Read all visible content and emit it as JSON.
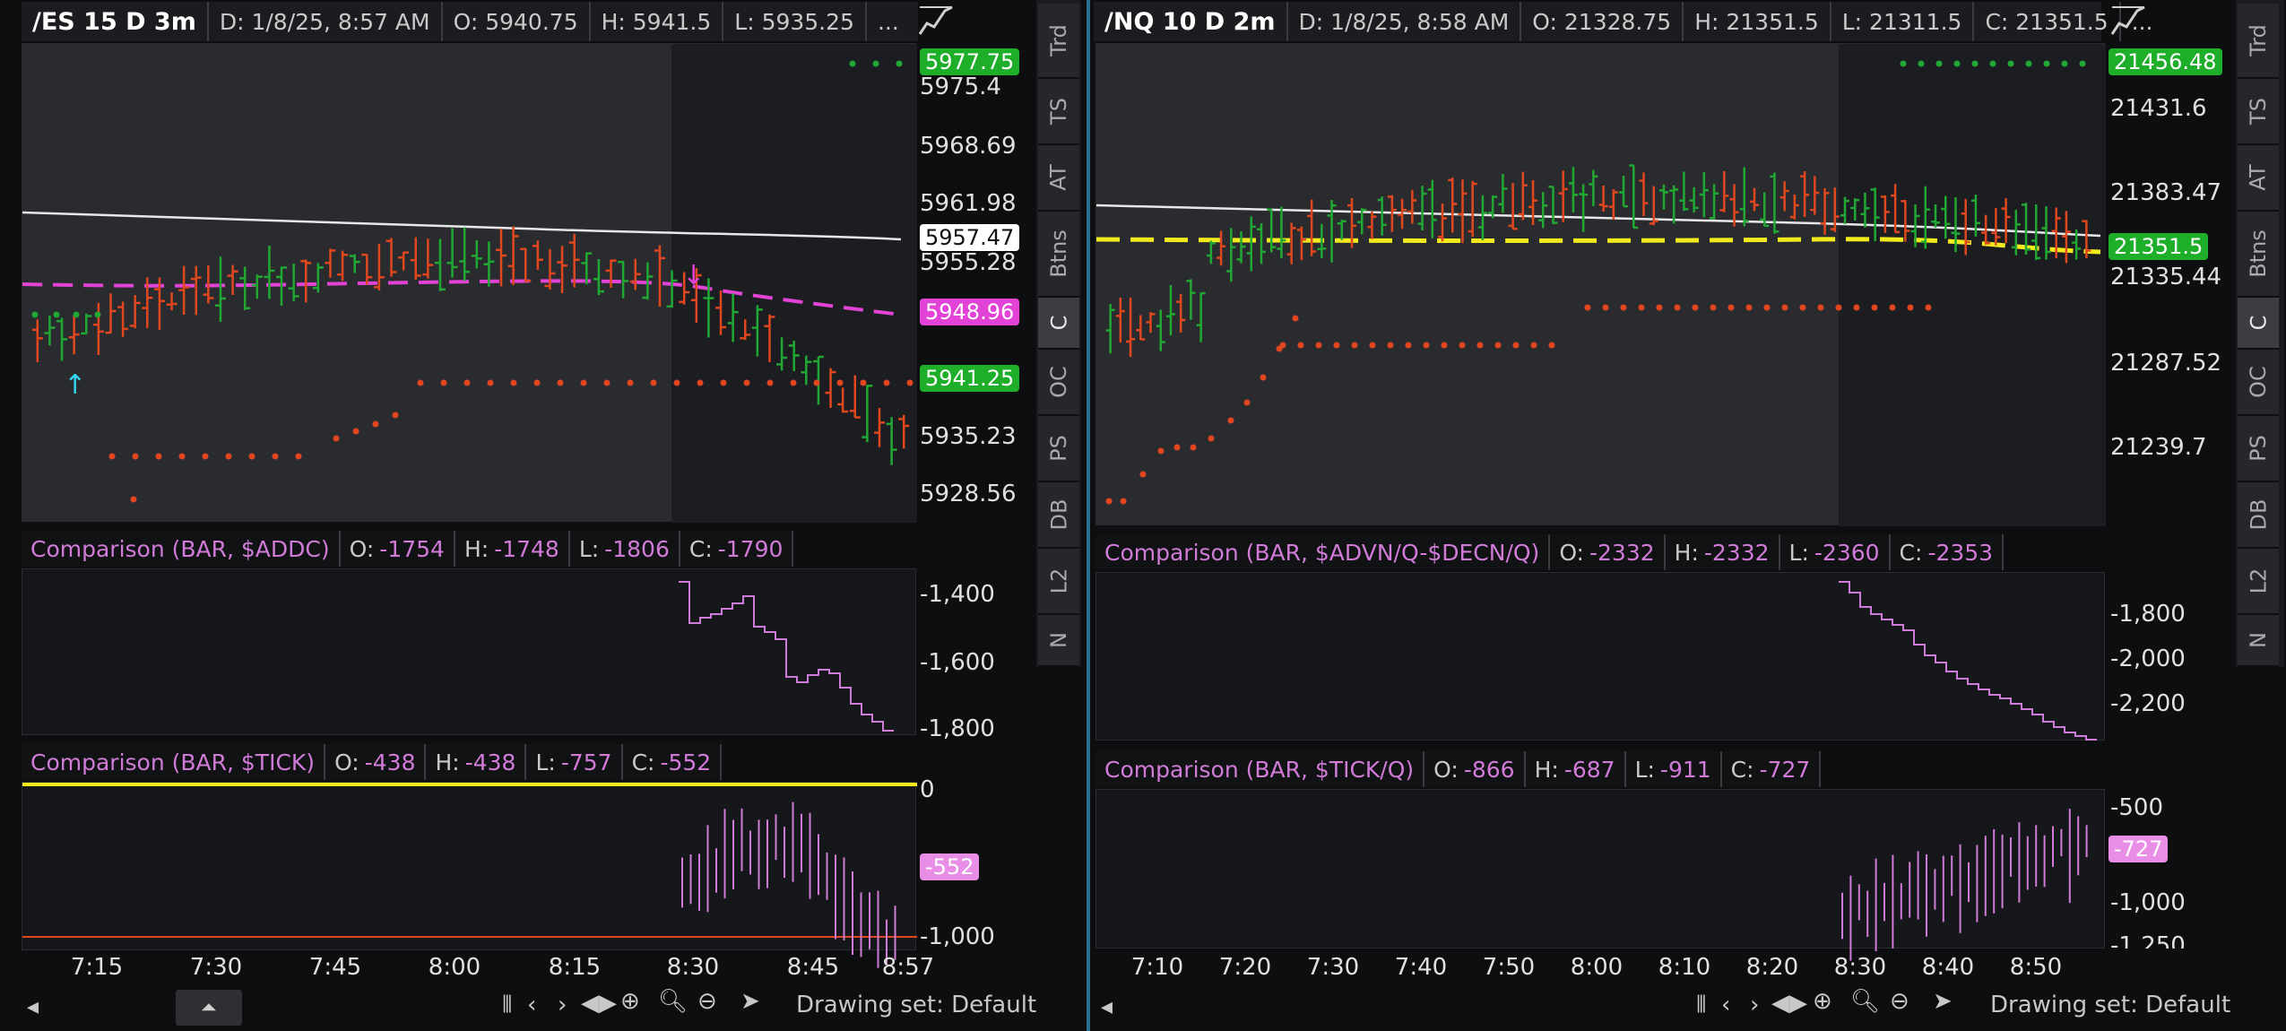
{
  "left": {
    "header": {
      "symbol": "/ES 15 D 3m",
      "date": "D: 1/8/25, 8:57 AM",
      "open": "O: 5940.75",
      "high": "H: 5941.5",
      "low": "L: 5935.25",
      "more": "..."
    },
    "price_axis": [
      "5975.4",
      "5968.69",
      "5961.98",
      "5955.28",
      "5935.23",
      "5928.56"
    ],
    "price_tags": {
      "top": "5977.75",
      "white": "5957.47",
      "magenta": "5948.96",
      "green": "5941.25"
    },
    "study1": {
      "title": "Comparison (BAR, $ADDC)",
      "o": "-1754",
      "h": "-1748",
      "l": "-1806",
      "c": "-1790",
      "axis": [
        "-1,400",
        "-1,600",
        "-1,800"
      ]
    },
    "study2": {
      "title": "Comparison (BAR, $TICK)",
      "o": "-438",
      "h": "-438",
      "l": "-757",
      "c": "-552",
      "axis": [
        "0",
        "-1,000"
      ],
      "tag": "-552"
    },
    "time_axis": [
      "7:15",
      "7:30",
      "7:45",
      "8:00",
      "8:15",
      "8:30",
      "8:45",
      "8:57"
    ],
    "drawing_set": "Drawing set: Default",
    "side_tabs": [
      "Trd",
      "TS",
      "AT",
      "Btns",
      "C",
      "OC",
      "PS",
      "DB",
      "L2",
      "N"
    ]
  },
  "right": {
    "header": {
      "symbol": "/NQ 10 D 2m",
      "date": "D: 1/8/25, 8:58 AM",
      "open": "O: 21328.75",
      "high": "H: 21351.5",
      "low": "L: 21311.5",
      "close": "C: 21351.5",
      "more": "..."
    },
    "price_axis": [
      "21431.6",
      "21383.47",
      "21335.44",
      "21287.52",
      "21239.7"
    ],
    "price_tags": {
      "top": "21456.48",
      "green": "21351.5"
    },
    "study1": {
      "title": "Comparison (BAR, $ADVN/Q-$DECN/Q)",
      "o": "-2332",
      "h": "-2332",
      "l": "-2360",
      "c": "-2353",
      "axis": [
        "-1,800",
        "-2,000",
        "-2,200"
      ]
    },
    "study2": {
      "title": "Comparison (BAR, $TICK/Q)",
      "o": "-866",
      "h": "-687",
      "l": "-911",
      "c": "-727",
      "axis": [
        "-500",
        "-1,000",
        "-1,250"
      ],
      "tag": "-727"
    },
    "time_axis": [
      "7:10",
      "7:20",
      "7:30",
      "7:40",
      "7:50",
      "8:00",
      "8:10",
      "8:20",
      "8:30",
      "8:40",
      "8:50"
    ],
    "drawing_set": "Drawing set: Default",
    "side_tabs": [
      "Trd",
      "TS",
      "AT",
      "Btns",
      "C",
      "OC",
      "PS",
      "DB",
      "L2",
      "N"
    ]
  },
  "labels": {
    "open": "O:",
    "high": "H:",
    "low": "L:",
    "close": "C:"
  },
  "colors": {
    "up": "#21a833",
    "down": "#e0471f",
    "magenta": "#e243d6",
    "yellow": "#f2ea1c",
    "study": "#d17bd8",
    "tag_green": "#1fae2a"
  },
  "chart_data": [
    {
      "type": "bar",
      "title": "/ES 15 D 3m",
      "ylim": [
        5928.56,
        5977.75
      ],
      "xlabel": "",
      "ylabel": ""
    },
    {
      "type": "bar",
      "title": "/NQ 10 D 2m",
      "ylim": [
        21239.7,
        21456.48
      ],
      "xlabel": "",
      "ylabel": ""
    }
  ]
}
